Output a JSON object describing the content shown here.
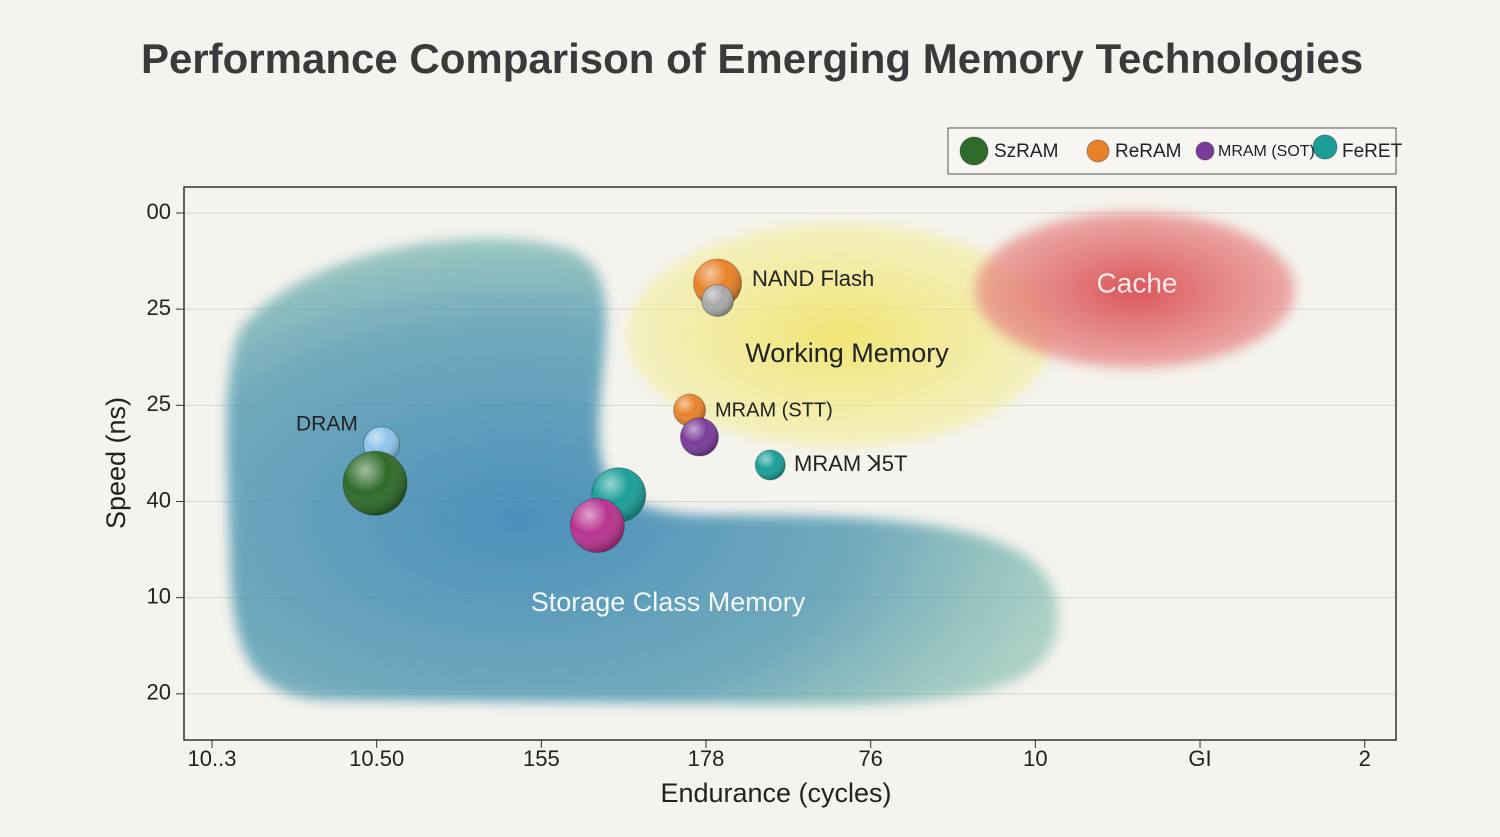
{
  "chart_data": {
    "type": "bubble",
    "title": "Performance Comparison of Emerging Memory Technologies",
    "x_label": "Endurance (cycles)",
    "y_label": "Speed (ns)",
    "xlim": [
      -0.17,
      7.19
    ],
    "ylim": [
      -0.27,
      5.48
    ],
    "xticks": [
      {
        "value": 0,
        "label": "10..3"
      },
      {
        "value": 1,
        "label": "10.50"
      },
      {
        "value": 2,
        "label": "155"
      },
      {
        "value": 3,
        "label": "178"
      },
      {
        "value": 4,
        "label": "76"
      },
      {
        "value": 5,
        "label": "10"
      },
      {
        "value": 6,
        "label": "GI"
      },
      {
        "value": 7,
        "label": "2"
      }
    ],
    "yticks": [
      {
        "value": 0,
        "label": "00"
      },
      {
        "value": 1,
        "label": "25"
      },
      {
        "value": 2,
        "label": "25"
      },
      {
        "value": 3,
        "label": "40"
      },
      {
        "value": 4,
        "label": "10"
      },
      {
        "value": 5,
        "label": "20"
      }
    ],
    "grid": true,
    "series": [
      {
        "name": "SzRAM",
        "color": "#2f6b2a"
      },
      {
        "name": "ReRAM",
        "color": "#e8822a"
      },
      {
        "name": "MRAM (SOT)",
        "color": "#7a3c9a"
      },
      {
        "name": "FeRET",
        "color": "#1a9e98"
      }
    ],
    "points": [
      {
        "x": 3.07,
        "y": 0.73,
        "size": 24,
        "color": "#e8822a"
      },
      {
        "x": 3.07,
        "y": 0.91,
        "size": 16,
        "color": "#a8a8a8"
      },
      {
        "x": 2.9,
        "y": 2.05,
        "size": 16,
        "color": "#e8822a"
      },
      {
        "x": 2.96,
        "y": 2.33,
        "size": 19,
        "color": "#7a3c9a"
      },
      {
        "x": 3.39,
        "y": 2.62,
        "size": 15,
        "color": "#1a9e98"
      },
      {
        "x": 1.03,
        "y": 2.41,
        "size": 18,
        "color": "#8cc4e8"
      },
      {
        "x": 0.99,
        "y": 2.81,
        "size": 32,
        "color": "#2f6b2a"
      },
      {
        "x": 2.47,
        "y": 2.93,
        "size": 27,
        "color": "#1a9e98"
      },
      {
        "x": 2.34,
        "y": 3.25,
        "size": 27,
        "color": "#b8338f"
      }
    ],
    "annotations": [
      "NAND Flash",
      "MRAM (STT)",
      "MRAM ꓘ5T",
      "DRAM"
    ],
    "regions": [
      "Storage Class Memory",
      "Working Memory",
      "Cache"
    ]
  }
}
